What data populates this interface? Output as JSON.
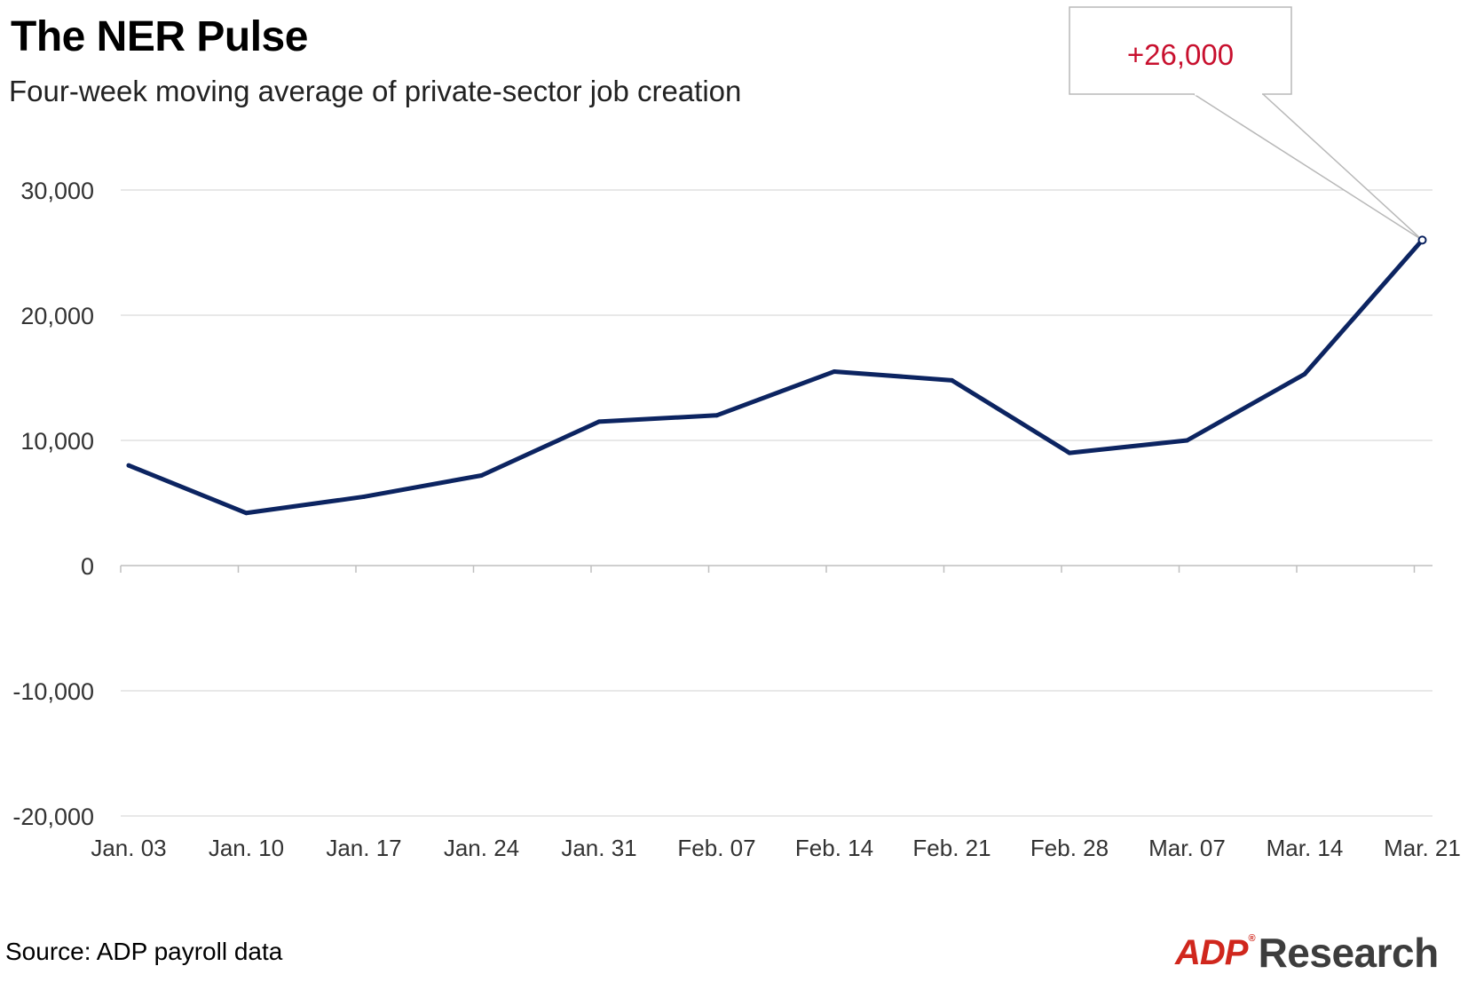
{
  "header": {
    "title": "The NER Pulse",
    "subtitle": "Four-week moving average of private-sector job creation"
  },
  "footer": {
    "source": "Source: ADP payroll data",
    "logo_brand": "ADP",
    "logo_registered": "®",
    "logo_word": "Research"
  },
  "colors": {
    "line": "#0c2461",
    "callout_text": "#c8102e",
    "grid": "#d9d9d9",
    "logo_red": "#d0271d"
  },
  "chart_data": {
    "type": "line",
    "title": "The NER Pulse",
    "subtitle": "Four-week moving average of private-sector job creation",
    "xlabel": "",
    "ylabel": "",
    "categories": [
      "Jan. 03",
      "Jan. 10",
      "Jan. 17",
      "Jan. 24",
      "Jan. 31",
      "Feb. 07",
      "Feb. 14",
      "Feb. 21",
      "Feb. 28",
      "Mar. 07",
      "Mar. 14",
      "Mar. 21"
    ],
    "series": [
      {
        "values": [
          8000,
          4200,
          5500,
          7200,
          11500,
          12000,
          15500,
          14800,
          9000,
          10000,
          15300,
          26000
        ]
      }
    ],
    "ylim": [
      -20000,
      30000
    ],
    "yticks": [
      -20000,
      -10000,
      0,
      10000,
      20000,
      30000
    ],
    "ytick_labels": [
      "-20,000",
      "-10,000",
      "0",
      "10,000",
      "20,000",
      "30,000"
    ],
    "grid": "horizontal",
    "legend": "none",
    "annotation": {
      "text": "+26,000",
      "target_category": "Mar. 21",
      "target_value": 26000
    }
  }
}
